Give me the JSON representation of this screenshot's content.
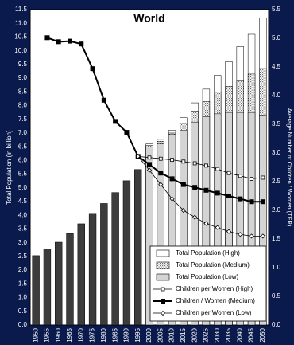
{
  "chart_data": {
    "type": "bar",
    "title": "World",
    "y_label": "Total Population (in billion)",
    "y2_label": "Average Number of Children / Women (TFR)",
    "categories": [
      "1950",
      "1955",
      "1960",
      "1965",
      "1970",
      "1975",
      "1980",
      "1985",
      "1990",
      "1995",
      "2000",
      "2005",
      "2010",
      "2015",
      "2020",
      "2025",
      "2030",
      "2035",
      "2040",
      "2045",
      "2050"
    ],
    "series": [
      {
        "type": "bar",
        "color": "#3c3c3c",
        "values": [
          2.53,
          2.77,
          3.02,
          3.33,
          3.69,
          4.07,
          4.43,
          4.83,
          5.26,
          5.67,
          null,
          null,
          null,
          null,
          null,
          null,
          null,
          null,
          null,
          null,
          null
        ]
      },
      {
        "name": "Total Population (High)",
        "type": "bar",
        "color": "#ffffff",
        "values": [
          null,
          null,
          null,
          null,
          null,
          null,
          null,
          null,
          null,
          null,
          6.6,
          6.77,
          7.1,
          7.56,
          8.1,
          8.6,
          9.1,
          9.6,
          10.15,
          10.6,
          11.2
        ]
      },
      {
        "name": "Total Population (Medium)",
        "type": "bar",
        "color": "#707070",
        "pattern": "dots",
        "values": [
          null,
          null,
          null,
          null,
          null,
          null,
          null,
          null,
          null,
          null,
          6.55,
          6.7,
          7.0,
          7.35,
          7.8,
          8.15,
          8.5,
          8.7,
          8.9,
          9.15,
          9.35
        ]
      },
      {
        "name": "Total Population (Low)",
        "type": "bar",
        "color": "#d4d4d4",
        "values": [
          null,
          null,
          null,
          null,
          null,
          null,
          null,
          null,
          null,
          null,
          6.5,
          6.6,
          6.95,
          7.1,
          7.4,
          7.6,
          7.7,
          7.75,
          7.75,
          7.75,
          7.65
        ]
      },
      {
        "name": "Children per Women (High)",
        "type": "line",
        "axis": "y2",
        "color": "#000000",
        "marker": "open-square",
        "values": [
          null,
          null,
          null,
          null,
          null,
          null,
          null,
          null,
          null,
          2.94,
          2.92,
          2.9,
          2.88,
          2.85,
          2.82,
          2.78,
          2.72,
          2.65,
          2.6,
          2.55,
          2.57
        ]
      },
      {
        "name": "Children / Women (Medium)",
        "type": "line",
        "axis": "y2",
        "color": "#000000",
        "marker": "filled-square",
        "values": [
          null,
          5.01,
          4.94,
          4.95,
          4.9,
          4.47,
          3.92,
          3.55,
          3.36,
          2.94,
          2.8,
          2.65,
          2.55,
          2.45,
          2.4,
          2.35,
          2.3,
          2.25,
          2.2,
          2.15,
          2.15
        ]
      },
      {
        "name": "Children per Women (Low)",
        "type": "line",
        "axis": "y2",
        "color": "#000000",
        "marker": "open-diamond",
        "values": [
          null,
          null,
          null,
          null,
          null,
          null,
          null,
          null,
          null,
          2.94,
          2.7,
          2.45,
          2.2,
          2.0,
          1.88,
          1.77,
          1.7,
          1.63,
          1.58,
          1.55,
          1.55
        ]
      }
    ],
    "ylim": [
      0,
      11.5
    ],
    "yticks": [
      {
        "value": 0,
        "label": "0.0"
      },
      0.5,
      {
        "value": 1,
        "label": "1.0"
      },
      1.5,
      {
        "value": 2,
        "label": "2.0"
      },
      2.5,
      {
        "value": 3,
        "label": "3.0"
      },
      3.5,
      {
        "value": 4,
        "label": "4.0"
      },
      4.5,
      {
        "value": 5,
        "label": "5.0"
      },
      5.5,
      {
        "value": 6,
        "label": "6.0"
      },
      6.5,
      {
        "value": 7,
        "label": "7.0"
      },
      7.5,
      {
        "value": 8,
        "label": "8.0"
      },
      8.5,
      {
        "value": 9,
        "label": "9.0"
      },
      9.5,
      {
        "value": 10,
        "label": "10.0"
      },
      10.5,
      {
        "value": 11,
        "label": "11.0"
      },
      11.5
    ],
    "y2lim": [
      0,
      5.5
    ],
    "y2ticks": [
      {
        "value": 0,
        "label": "0.0"
      },
      0.5,
      {
        "value": 1,
        "label": "1.0"
      },
      1.5,
      {
        "value": 2,
        "label": "2.0"
      },
      2.5,
      {
        "value": 3,
        "label": "3.0"
      },
      3.5,
      {
        "value": 4,
        "label": "4.0"
      },
      4.5,
      {
        "value": 5,
        "label": "5.0"
      },
      5.5
    ],
    "grid": false,
    "legend": "lower right"
  }
}
